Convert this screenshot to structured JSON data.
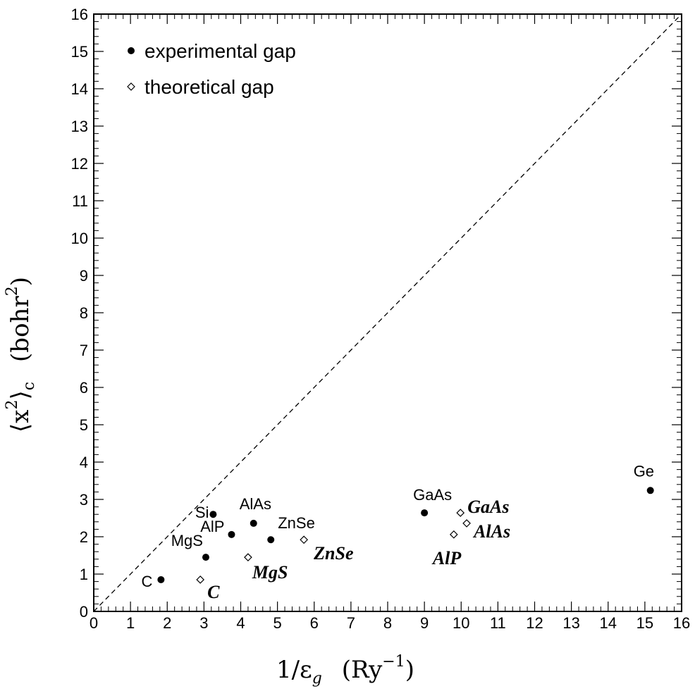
{
  "chart_data": {
    "type": "scatter",
    "xlabel": "1/ε",
    "xlabel_sub": "g",
    "xlabel_unit": "(Ry",
    "xlabel_unit_sup": "−1",
    "xlabel_unit_close": ")",
    "ylabel": "⟨x",
    "ylabel_sup": "2",
    "ylabel_close": "⟩",
    "ylabel_sub": "c",
    "ylabel_unit": "(bohr",
    "ylabel_unit_sup": "2",
    "ylabel_unit_close": ")",
    "xlim": [
      0,
      16
    ],
    "ylim": [
      0,
      16
    ],
    "xticks": [
      "0",
      "1",
      "2",
      "3",
      "4",
      "5",
      "6",
      "7",
      "8",
      "9",
      "10",
      "11",
      "12",
      "13",
      "14",
      "15",
      "16"
    ],
    "yticks": [
      "0",
      "1",
      "2",
      "3",
      "4",
      "5",
      "6",
      "7",
      "8",
      "9",
      "10",
      "11",
      "12",
      "13",
      "14",
      "15",
      "16"
    ],
    "grid": false,
    "legend_position": "top-left",
    "reference_line": {
      "style": "dashed",
      "from": [
        0,
        0
      ],
      "to": [
        16,
        16
      ]
    },
    "series": [
      {
        "name": "experimental gap",
        "marker": "filled-circle",
        "points": [
          {
            "label": "C",
            "x": 1.83,
            "y": 0.85
          },
          {
            "label": "MgS",
            "x": 3.05,
            "y": 1.45
          },
          {
            "label": "Si",
            "x": 3.25,
            "y": 2.6
          },
          {
            "label": "AlP",
            "x": 3.75,
            "y": 2.06
          },
          {
            "label": "AlAs",
            "x": 4.35,
            "y": 2.36
          },
          {
            "label": "ZnSe",
            "x": 4.82,
            "y": 1.92
          },
          {
            "label": "GaAs",
            "x": 9.0,
            "y": 2.64
          },
          {
            "label": "Ge",
            "x": 15.15,
            "y": 3.24
          }
        ]
      },
      {
        "name": "theoretical gap",
        "marker": "open-diamond",
        "points": [
          {
            "label": "C",
            "x": 2.9,
            "y": 0.85
          },
          {
            "label": "MgS",
            "x": 4.2,
            "y": 1.45
          },
          {
            "label": "ZnSe",
            "x": 5.72,
            "y": 1.92
          },
          {
            "label": "AlP",
            "x": 9.8,
            "y": 2.06
          },
          {
            "label": "AlAs",
            "x": 10.15,
            "y": 2.36
          },
          {
            "label": "GaAs",
            "x": 9.98,
            "y": 2.64
          }
        ]
      }
    ]
  }
}
